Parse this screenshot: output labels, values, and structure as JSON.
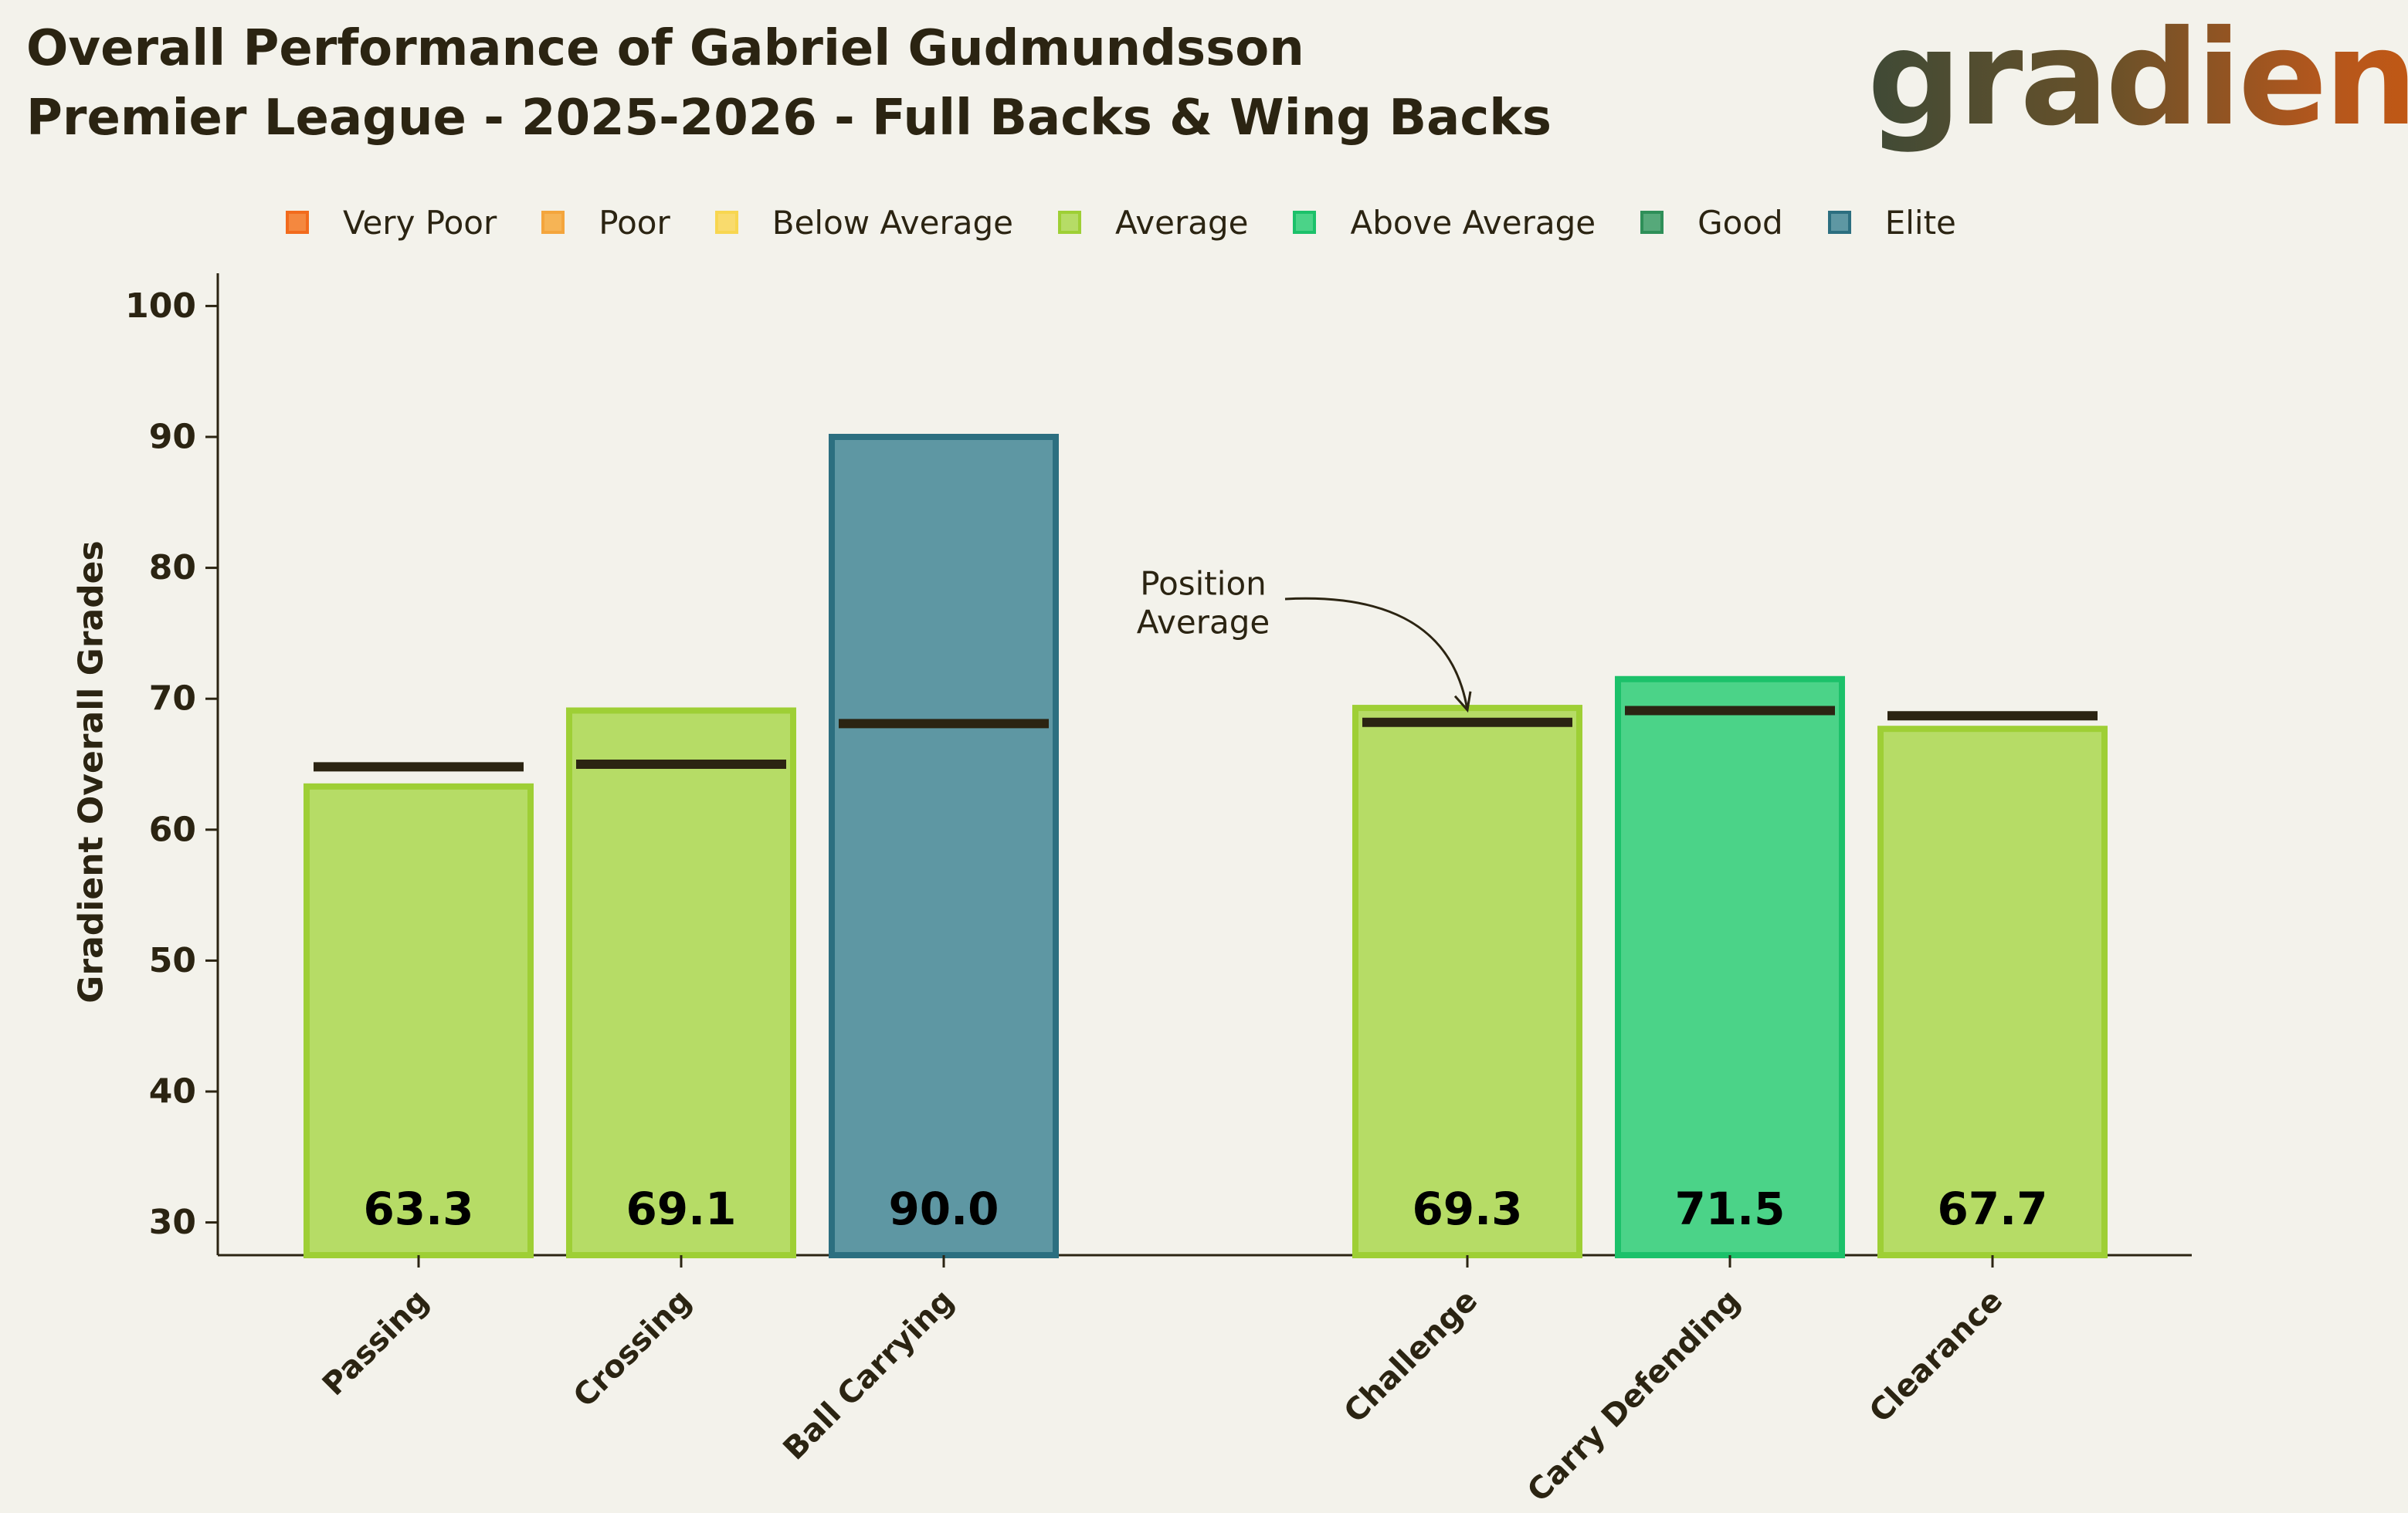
{
  "header": {
    "title_line1": "Overall Performance of Gabriel Gudmundsson",
    "title_line2": "Premier League - 2025-2026 - Full Backs & Wing Backs"
  },
  "logo": {
    "text": "gradient"
  },
  "legend": [
    {
      "label": "Very Poor",
      "fill": "#f4883f",
      "stroke": "#f26b1d"
    },
    {
      "label": "Poor",
      "fill": "#f6b455",
      "stroke": "#f4a53c"
    },
    {
      "label": "Below Average",
      "fill": "#f9db6d",
      "stroke": "#f8d650"
    },
    {
      "label": "Average",
      "fill": "#b6dc66",
      "stroke": "#9ecf35"
    },
    {
      "label": "Above Average",
      "fill": "#4bd388",
      "stroke": "#1cc16a"
    },
    {
      "label": "Good",
      "fill": "#56a97a",
      "stroke": "#2e8f58"
    },
    {
      "label": "Elite",
      "fill": "#5e97a3",
      "stroke": "#2c6f80"
    }
  ],
  "chart_data": {
    "type": "bar",
    "ylabel": "Gradient Overall Grades",
    "ylim": [
      27.5,
      102.5
    ],
    "yticks": [
      30,
      40,
      50,
      60,
      70,
      80,
      90,
      100
    ],
    "categories": [
      "Passing",
      "Crossing",
      "Ball Carrying",
      "Challenge",
      "Carry Defending",
      "Clearance"
    ],
    "values": [
      63.3,
      69.1,
      90.0,
      69.3,
      71.5,
      67.7
    ],
    "value_labels": [
      "63.3",
      "69.1",
      "90.0",
      "69.3",
      "71.5",
      "67.7"
    ],
    "position_average": [
      64.8,
      65.0,
      68.1,
      68.2,
      69.1,
      68.7
    ],
    "grades": [
      "Average",
      "Average",
      "Elite",
      "Average",
      "Above Average",
      "Average"
    ],
    "annotation": {
      "line1": "Position",
      "line2": "Average",
      "category": "Challenge"
    },
    "grid": false,
    "legend_position": "top"
  }
}
